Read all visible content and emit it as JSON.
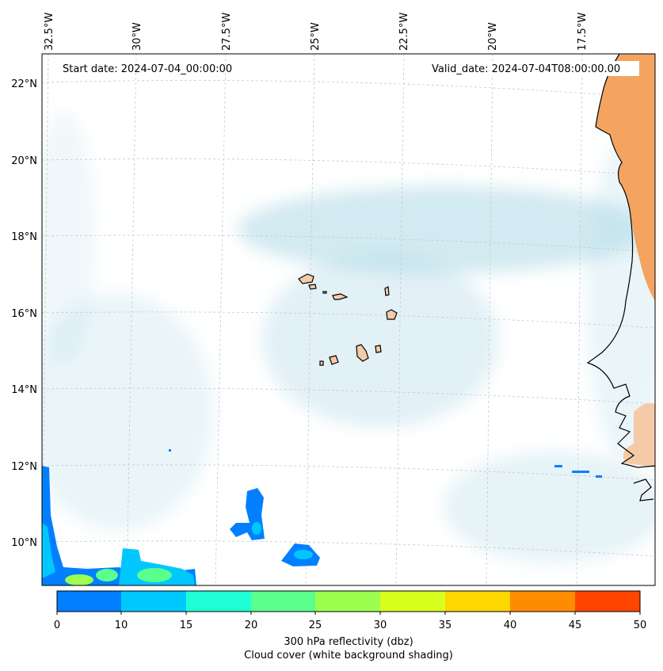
{
  "map": {
    "start_date": "Start date: 2024-07-04_00:00:00",
    "valid_date": "Valid_date: 2024-07-04T08:00:00.00",
    "lon_labels": [
      "32.5°W",
      "30°W",
      "27.5°W",
      "25°W",
      "22.5°W",
      "20°W",
      "17.5°W"
    ],
    "lat_labels": [
      "22°N",
      "20°N",
      "18°N",
      "16°N",
      "14°N",
      "12°N",
      "10°N"
    ]
  },
  "colorbar": {
    "ticks": [
      "0",
      "10",
      "15",
      "20",
      "25",
      "30",
      "35",
      "40",
      "45",
      "50"
    ],
    "colors": [
      "#0080ff",
      "#00c8ff",
      "#1effd5",
      "#5aff8e",
      "#9cff50",
      "#d8ff1e",
      "#ffd700",
      "#ff8c00",
      "#ff4500"
    ],
    "label_line1": "300 hPa reflectivity (dbz)",
    "label_line2": "Cloud cover (white background shading)"
  },
  "colors": {
    "land_africa": "#f4a460",
    "island_fill": "#f5cba7",
    "cloud": "#add8e6"
  }
}
